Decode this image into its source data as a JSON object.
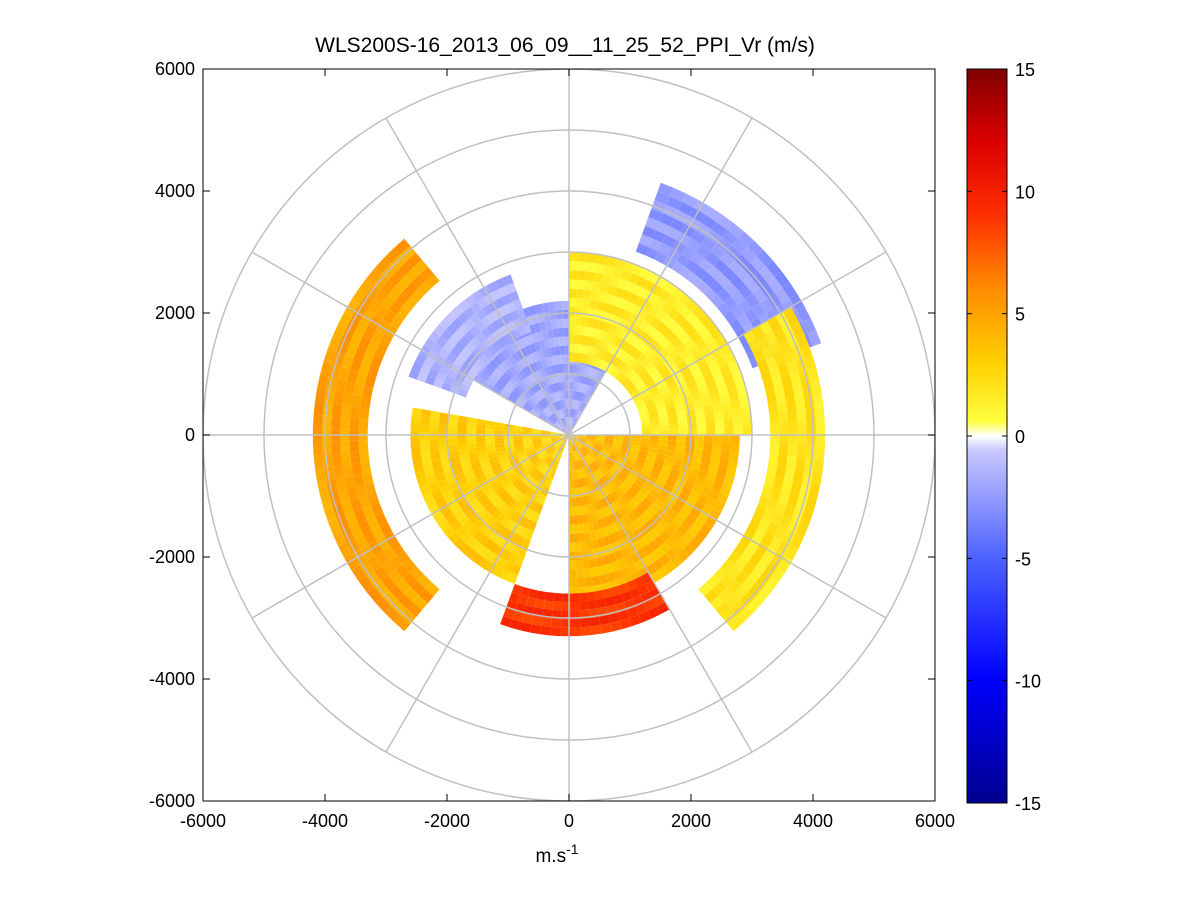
{
  "chart_data": {
    "type": "heatmap",
    "title": "WLS200S-16_2013_06_09__11_25_52_PPI_Vr (m/s)",
    "xlabel_base": "m.s",
    "xlabel_sup": "-1",
    "ylabel": "",
    "xlim": [
      -6000,
      6000
    ],
    "ylim": [
      -6000,
      6000
    ],
    "x_ticks": [
      -6000,
      -4000,
      -2000,
      0,
      2000,
      4000,
      6000
    ],
    "y_ticks": [
      -6000,
      -4000,
      -2000,
      0,
      2000,
      4000,
      6000
    ],
    "x_tick_labels": [
      "-6000",
      "-4000",
      "-2000",
      "0",
      "2000",
      "4000",
      "6000"
    ],
    "y_tick_labels": [
      "-6000",
      "-4000",
      "-2000",
      "0",
      "2000",
      "4000",
      "6000"
    ],
    "polar_grid": {
      "ring_radii": [
        1000,
        2000,
        3000,
        4000,
        5000,
        6000
      ],
      "spoke_angles_deg": [
        0,
        30,
        60,
        90,
        120,
        150,
        180,
        210,
        240,
        270,
        300,
        330
      ]
    },
    "colorbar": {
      "clim": [
        -15,
        15
      ],
      "ticks": [
        15,
        10,
        5,
        0,
        -5,
        -10,
        -15
      ],
      "tick_labels": [
        "15",
        "10",
        "5",
        "0",
        "-5",
        "-10",
        "-15"
      ]
    },
    "approx_velocity_field": {
      "units": "m/s",
      "range_m": [
        0,
        4400
      ],
      "azimuth_convention": "degrees clockwise from north (+y)",
      "regions": [
        {
          "azimuth_deg": [
            300,
            360
          ],
          "range_m": [
            0,
            2200
          ],
          "vr": -2
        },
        {
          "azimuth_deg": [
            0,
            30
          ],
          "range_m": [
            0,
            1600
          ],
          "vr": -2
        },
        {
          "azimuth_deg": [
            20,
            70
          ],
          "range_m": [
            3200,
            4400
          ],
          "vr": -2.5
        },
        {
          "azimuth_deg": [
            290,
            340
          ],
          "range_m": [
            1800,
            2800
          ],
          "vr": -1.5
        },
        {
          "azimuth_deg": [
            0,
            90
          ],
          "range_m": [
            1200,
            3000
          ],
          "vr": 1.5
        },
        {
          "azimuth_deg": [
            90,
            180
          ],
          "range_m": [
            0,
            2800
          ],
          "vr": 4
        },
        {
          "azimuth_deg": [
            150,
            200
          ],
          "range_m": [
            2600,
            3300
          ],
          "vr": 9
        },
        {
          "azimuth_deg": [
            200,
            280
          ],
          "range_m": [
            0,
            2600
          ],
          "vr": 3
        },
        {
          "azimuth_deg": [
            220,
            320
          ],
          "range_m": [
            3300,
            4200
          ],
          "vr": 5
        },
        {
          "azimuth_deg": [
            60,
            140
          ],
          "range_m": [
            3300,
            4200
          ],
          "vr": 2
        }
      ]
    }
  }
}
